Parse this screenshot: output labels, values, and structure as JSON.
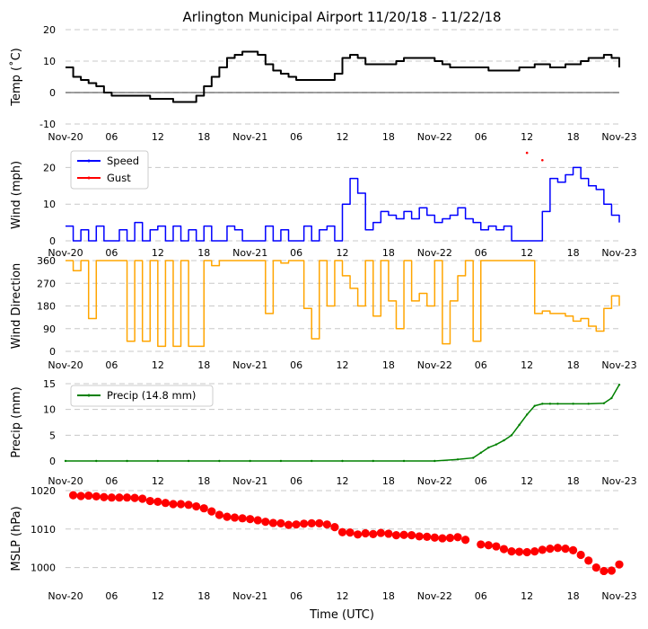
{
  "title": "Arlington Municipal Airport 11/20/18 - 11/22/18",
  "xlabel": "Time (UTC)",
  "x_tick_labels": [
    "Nov-20",
    "06",
    "12",
    "18",
    "Nov-21",
    "06",
    "12",
    "18",
    "Nov-22",
    "06",
    "12",
    "18",
    "Nov-23"
  ],
  "colors": {
    "temp": "#000000",
    "speed": "#0000ff",
    "gust": "#ff0000",
    "dir": "#ffa500",
    "precip": "#008000",
    "mslp": "#ff0000",
    "grid": "#c8c8c8"
  },
  "chart_data": [
    {
      "type": "line",
      "id": "temp",
      "ylabel": "Temp ($^\\circ$C)",
      "ylabel_display": "Temp (˚C)",
      "ylim": [
        -10,
        20
      ],
      "yticks": [
        -10,
        0,
        10,
        20
      ],
      "zero_line": true,
      "x_hours": [
        0,
        1,
        2,
        3,
        4,
        5,
        6,
        7,
        8,
        9,
        10,
        11,
        12,
        13,
        14,
        15,
        16,
        17,
        18,
        19,
        20,
        21,
        22,
        23,
        24,
        25,
        26,
        27,
        28,
        29,
        30,
        31,
        32,
        33,
        34,
        35,
        36,
        37,
        38,
        39,
        40,
        41,
        42,
        43,
        44,
        45,
        46,
        47,
        48,
        49,
        50,
        51,
        52,
        53,
        54,
        55,
        56,
        57,
        58,
        59,
        60,
        61,
        62,
        63,
        64,
        65,
        66,
        67,
        68,
        69,
        70,
        71,
        72
      ],
      "series": [
        {
          "name": "Temp",
          "values": [
            8,
            5,
            4,
            3,
            2,
            0,
            -1,
            -1,
            -1,
            -1,
            -1,
            -2,
            -2,
            -2,
            -3,
            -3,
            -3,
            -1,
            2,
            5,
            8,
            11,
            12,
            13,
            13,
            12,
            9,
            7,
            6,
            5,
            4,
            4,
            4,
            4,
            4,
            6,
            11,
            12,
            11,
            9,
            9,
            9,
            9,
            10,
            11,
            11,
            11,
            11,
            10,
            9,
            8,
            8,
            8,
            8,
            8,
            7,
            7,
            7,
            7,
            8,
            8,
            9,
            9,
            8,
            8,
            9,
            9,
            10,
            11,
            11,
            12,
            11,
            8
          ]
        }
      ]
    },
    {
      "type": "line",
      "id": "wind",
      "ylabel": "Wind (mph)",
      "ylim": [
        0,
        25
      ],
      "yticks": [
        0,
        10,
        20
      ],
      "legend": [
        "Speed",
        "Gust"
      ],
      "legend_position": "top-left",
      "x_hours": [
        0,
        1,
        2,
        3,
        4,
        5,
        6,
        7,
        8,
        9,
        10,
        11,
        12,
        13,
        14,
        15,
        16,
        17,
        18,
        19,
        20,
        21,
        22,
        23,
        24,
        25,
        26,
        27,
        28,
        29,
        30,
        31,
        32,
        33,
        34,
        35,
        36,
        37,
        38,
        39,
        40,
        41,
        42,
        43,
        44,
        45,
        46,
        47,
        48,
        49,
        50,
        51,
        52,
        53,
        54,
        55,
        56,
        57,
        58,
        59,
        60,
        61,
        62,
        63,
        64,
        65,
        66,
        67,
        68,
        69,
        70,
        71,
        72
      ],
      "series": [
        {
          "name": "Speed",
          "values": [
            4,
            0,
            3,
            0,
            4,
            0,
            0,
            3,
            0,
            5,
            0,
            3,
            4,
            0,
            4,
            0,
            3,
            0,
            4,
            0,
            0,
            4,
            3,
            0,
            0,
            0,
            4,
            0,
            3,
            0,
            0,
            4,
            0,
            3,
            4,
            0,
            10,
            17,
            13,
            3,
            5,
            8,
            7,
            6,
            8,
            6,
            9,
            7,
            5,
            6,
            7,
            9,
            6,
            5,
            3,
            4,
            3,
            4,
            0,
            0,
            0,
            0,
            8,
            17,
            16,
            18,
            20,
            17,
            15,
            14,
            10,
            7,
            5
          ]
        },
        {
          "name": "Gust",
          "x_hours": [
            60,
            62
          ],
          "values": [
            24,
            22
          ]
        }
      ]
    },
    {
      "type": "line",
      "id": "wdir",
      "ylabel": "Wind Direction",
      "ylim": [
        0,
        360
      ],
      "yticks": [
        0,
        90,
        180,
        270,
        360
      ],
      "x_hours": [
        0,
        1,
        2,
        3,
        4,
        5,
        6,
        7,
        8,
        9,
        10,
        11,
        12,
        13,
        14,
        15,
        16,
        17,
        18,
        19,
        20,
        21,
        22,
        23,
        24,
        25,
        26,
        27,
        28,
        29,
        30,
        31,
        32,
        33,
        34,
        35,
        36,
        37,
        38,
        39,
        40,
        41,
        42,
        43,
        44,
        45,
        46,
        47,
        48,
        49,
        50,
        51,
        52,
        53,
        54,
        55,
        56,
        57,
        58,
        59,
        60,
        61,
        62,
        63,
        64,
        65,
        66,
        67,
        68,
        69,
        70,
        71,
        72
      ],
      "series": [
        {
          "name": "Direction",
          "values": [
            360,
            320,
            360,
            130,
            360,
            360,
            360,
            360,
            40,
            360,
            40,
            360,
            20,
            360,
            20,
            360,
            20,
            20,
            360,
            340,
            360,
            360,
            360,
            360,
            360,
            360,
            150,
            360,
            350,
            360,
            360,
            170,
            50,
            360,
            180,
            360,
            300,
            250,
            180,
            360,
            140,
            360,
            200,
            90,
            360,
            200,
            230,
            180,
            360,
            30,
            200,
            300,
            360,
            40,
            360,
            360,
            360,
            360,
            360,
            360,
            360,
            150,
            160,
            150,
            150,
            140,
            120,
            130,
            100,
            80,
            170,
            220,
            180
          ]
        }
      ]
    },
    {
      "type": "line",
      "id": "precip",
      "ylabel": "Precip (mm)",
      "ylim": [
        0,
        15
      ],
      "yticks": [
        0,
        5,
        10,
        15
      ],
      "legend": [
        "Precip (14.8 mm)"
      ],
      "legend_position": "top-left",
      "x_hours": [
        0,
        4,
        8,
        12,
        16,
        20,
        24,
        28,
        32,
        36,
        40,
        44,
        48,
        51,
        53,
        54,
        55,
        56,
        57,
        58,
        59,
        60,
        61,
        62,
        63,
        64,
        66,
        68,
        70,
        71,
        72
      ],
      "series": [
        {
          "name": "Precip",
          "values": [
            0,
            0,
            0,
            0,
            0,
            0,
            0,
            0,
            0,
            0,
            0,
            0,
            0,
            0.3,
            0.6,
            1.6,
            2.6,
            3.2,
            4,
            5,
            7,
            9,
            10.7,
            11.1,
            11.1,
            11.1,
            11.1,
            11.1,
            11.2,
            12.2,
            14.8
          ]
        }
      ]
    },
    {
      "type": "scatter",
      "id": "mslp",
      "ylabel": "MSLP (hPa)",
      "ylim": [
        995,
        1020
      ],
      "yticks": [
        1000,
        1010,
        1020
      ],
      "x_hours": [
        1,
        2,
        3,
        4,
        5,
        6,
        7,
        8,
        9,
        10,
        11,
        12,
        13,
        14,
        15,
        16,
        17,
        18,
        19,
        20,
        21,
        22,
        23,
        24,
        25,
        26,
        27,
        28,
        29,
        30,
        31,
        32,
        33,
        34,
        35,
        36,
        37,
        38,
        39,
        40,
        41,
        42,
        43,
        44,
        45,
        46,
        47,
        48,
        49,
        50,
        51,
        52,
        54,
        55,
        56,
        57,
        58,
        59,
        60,
        61,
        62,
        63,
        64,
        65,
        66,
        67,
        68,
        69,
        70,
        71,
        72
      ],
      "series": [
        {
          "name": "MSLP",
          "values": [
            1018.8,
            1018.6,
            1018.7,
            1018.5,
            1018.3,
            1018.2,
            1018.2,
            1018.2,
            1018.1,
            1017.9,
            1017.3,
            1017.1,
            1016.8,
            1016.5,
            1016.5,
            1016.3,
            1015.9,
            1015.4,
            1014.6,
            1013.7,
            1013.2,
            1013.0,
            1012.8,
            1012.6,
            1012.3,
            1011.9,
            1011.6,
            1011.5,
            1011.1,
            1011.2,
            1011.4,
            1011.5,
            1011.5,
            1011.2,
            1010.5,
            1009.2,
            1009.1,
            1008.6,
            1008.9,
            1008.7,
            1009.0,
            1008.8,
            1008.4,
            1008.5,
            1008.4,
            1008.1,
            1008.0,
            1007.8,
            1007.6,
            1007.7,
            1007.9,
            1007.2,
            1006.0,
            1005.8,
            1005.5,
            1004.8,
            1004.2,
            1004.1,
            1004.0,
            1004.2,
            1004.6,
            1004.9,
            1005.1,
            1004.9,
            1004.5,
            1003.3,
            1001.8,
            1000.0,
            999.1,
            999.2,
            1000.8
          ]
        }
      ]
    }
  ]
}
